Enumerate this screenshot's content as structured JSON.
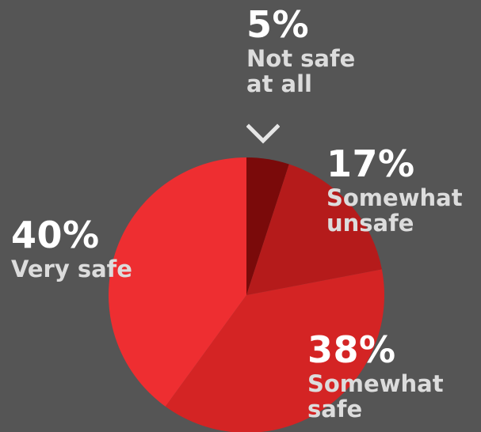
{
  "chart_data": {
    "type": "pie",
    "title": "",
    "background_color": "#555555",
    "slices": [
      {
        "label": "Not safe at all",
        "value": 5,
        "value_label": "5%",
        "label_lines": [
          "Not safe",
          "at all"
        ],
        "color": "#7a0a0a"
      },
      {
        "label": "Somewhat unsafe",
        "value": 17,
        "value_label": "17%",
        "label_lines": [
          "Somewhat",
          "unsafe"
        ],
        "color": "#b51b1b"
      },
      {
        "label": "Somewhat safe",
        "value": 38,
        "value_label": "38%",
        "label_lines": [
          "Somewhat",
          "safe"
        ],
        "color": "#d42424"
      },
      {
        "label": "Very safe",
        "value": 40,
        "value_label": "40%",
        "label_lines": [
          "Very safe"
        ],
        "color": "#ee2e31"
      }
    ],
    "start_angle": "12 o'clock",
    "direction": "clockwise",
    "legend": "none"
  }
}
